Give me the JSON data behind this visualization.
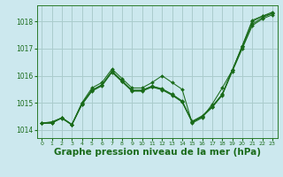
{
  "bg_color": "#cce8ee",
  "grid_color": "#aacccc",
  "line_color": "#1a6b1a",
  "marker_color": "#1a6b1a",
  "xlabel": "Graphe pression niveau de la mer (hPa)",
  "xlabel_fontsize": 7.5,
  "ylim": [
    1013.7,
    1018.6
  ],
  "xlim": [
    -0.5,
    23.5
  ],
  "yticks": [
    1014,
    1015,
    1016,
    1017,
    1018
  ],
  "xticks": [
    0,
    1,
    2,
    3,
    4,
    5,
    6,
    7,
    8,
    9,
    10,
    11,
    12,
    13,
    14,
    15,
    16,
    17,
    18,
    19,
    20,
    21,
    22,
    23
  ],
  "series": [
    [
      1014.25,
      1014.25,
      1014.45,
      1014.2,
      1015.0,
      1015.55,
      1015.75,
      1016.25,
      1015.9,
      1015.55,
      1015.55,
      1015.75,
      1016.0,
      1015.75,
      1015.5,
      1014.25,
      1014.45,
      1014.95,
      1015.55,
      1016.2,
      1017.1,
      1018.05,
      1018.2,
      1018.35
    ],
    [
      1014.25,
      1014.25,
      1014.45,
      1014.2,
      1014.95,
      1015.45,
      1015.65,
      1016.15,
      1015.8,
      1015.45,
      1015.45,
      1015.6,
      1015.5,
      1015.3,
      1015.05,
      1014.3,
      1014.5,
      1014.85,
      1015.3,
      1016.2,
      1017.1,
      1018.0,
      1018.2,
      1018.3
    ],
    [
      1014.25,
      1014.3,
      1014.45,
      1014.2,
      1014.97,
      1015.47,
      1015.67,
      1016.17,
      1015.82,
      1015.47,
      1015.47,
      1015.62,
      1015.52,
      1015.32,
      1015.07,
      1014.32,
      1014.52,
      1014.87,
      1015.32,
      1016.2,
      1017.05,
      1017.9,
      1018.15,
      1018.3
    ],
    [
      1014.25,
      1014.28,
      1014.43,
      1014.18,
      1014.93,
      1015.43,
      1015.63,
      1016.13,
      1015.78,
      1015.43,
      1015.43,
      1015.58,
      1015.48,
      1015.28,
      1015.03,
      1014.28,
      1014.48,
      1014.83,
      1015.28,
      1016.15,
      1017.0,
      1017.85,
      1018.1,
      1018.25
    ]
  ]
}
